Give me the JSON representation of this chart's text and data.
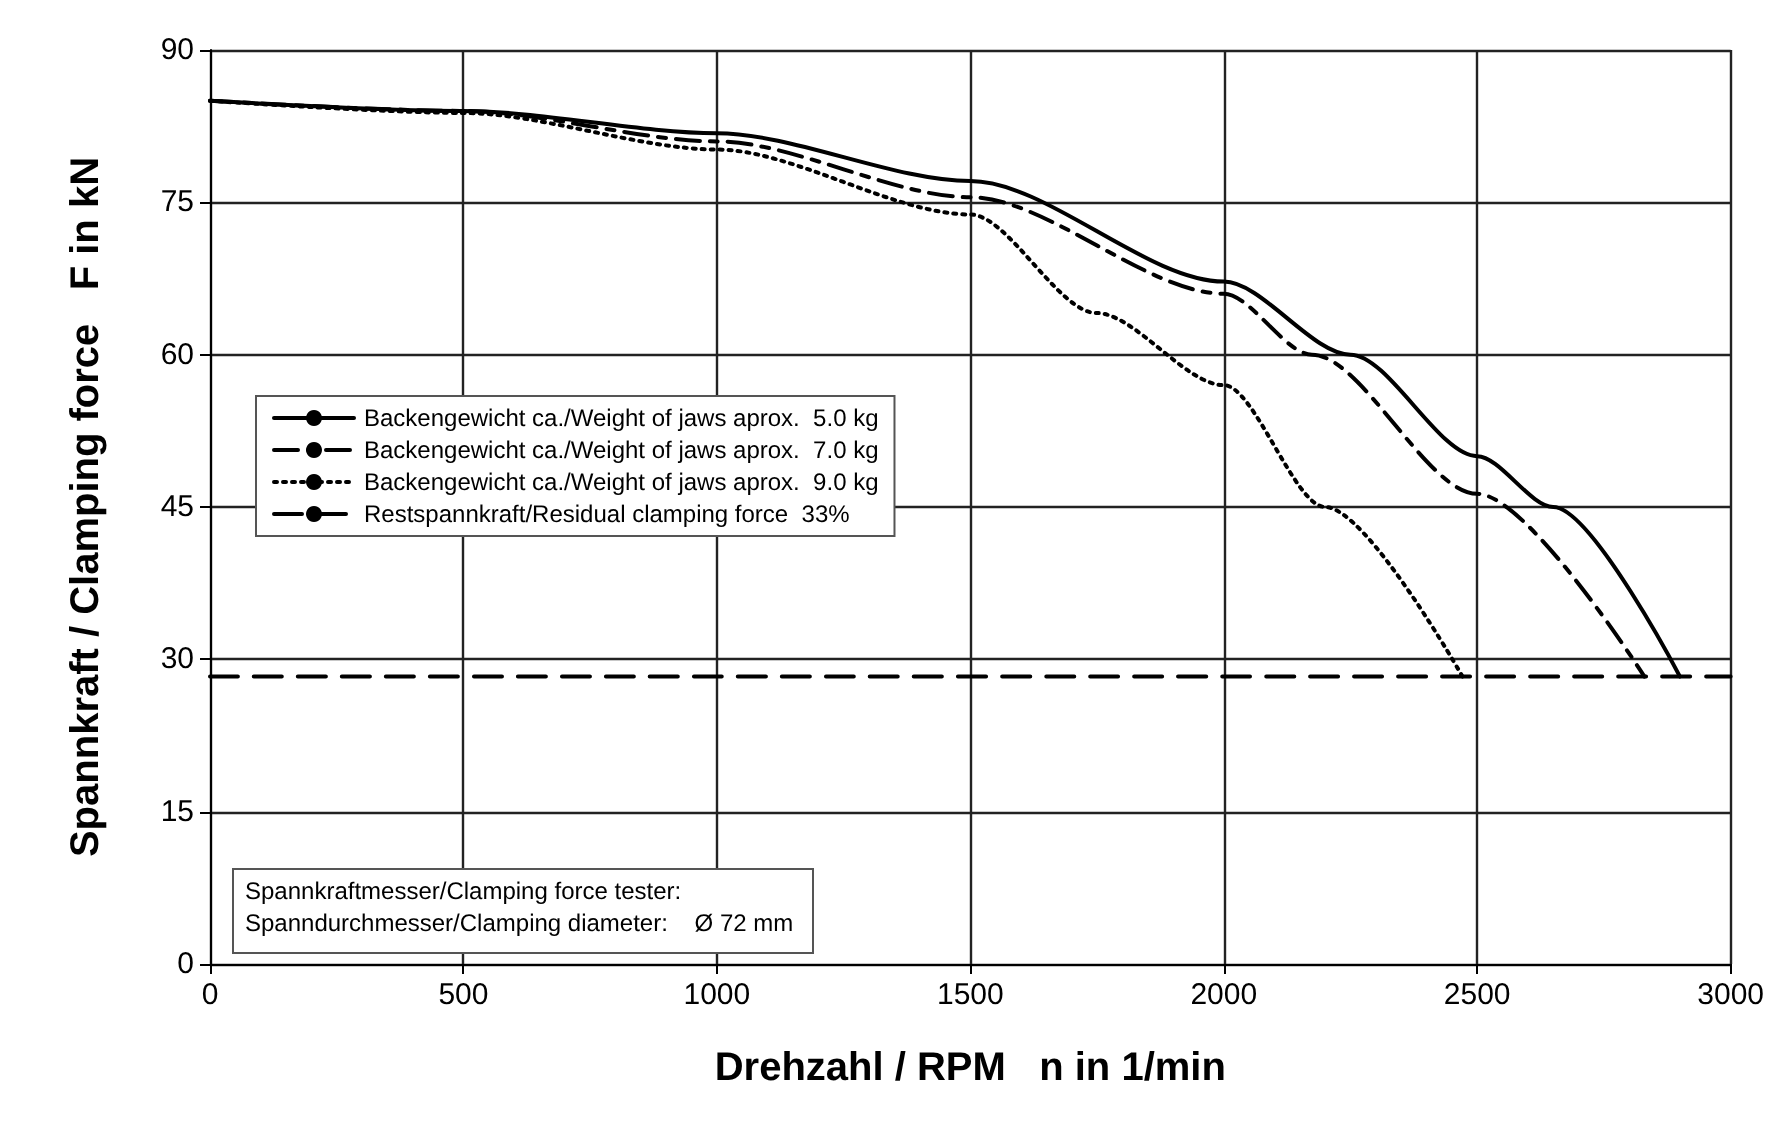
{
  "chart_data": {
    "type": "line",
    "xlabel": "Drehzahl / RPM   n in 1/min",
    "ylabel": "Spannkraft / Clamping force   F in kN",
    "xlim": [
      0,
      3000
    ],
    "xticks": [
      0,
      500,
      1000,
      1500,
      2000,
      2500,
      3000
    ],
    "ylim": [
      0,
      90
    ],
    "yticks": [
      0,
      15,
      30,
      45,
      60,
      75,
      90
    ],
    "grid": true,
    "legend": "left",
    "marker": "none",
    "series": [
      {
        "name": "Backengewicht ca./Weight of jaws aprox.  5.0 kg",
        "color": "#000000",
        "line_style": "solid",
        "x": [
          0,
          500,
          1000,
          1500,
          2000,
          2250,
          2500,
          2650,
          2900
        ],
        "values": [
          85,
          84,
          81.8,
          77.1,
          67.2,
          60,
          50,
          45,
          28.3
        ]
      },
      {
        "name": "Backengewicht ca./Weight of jaws aprox.  7.0 kg",
        "color": "#000000",
        "line_style": "dashdot",
        "x": [
          0,
          500,
          1000,
          1500,
          2000,
          2174,
          2500,
          2830
        ],
        "values": [
          85,
          84,
          81,
          75.5,
          66,
          60,
          46.3,
          28.3
        ]
      },
      {
        "name": "Backengewicht ca./Weight of jaws aprox.  9.0 kg",
        "color": "#000000",
        "line_style": "dotted",
        "x": [
          0,
          500,
          1000,
          1500,
          1749,
          2000,
          2200,
          2471
        ],
        "values": [
          85,
          83.8,
          80.2,
          73.8,
          64.1,
          57,
          45,
          28.3
        ]
      },
      {
        "name": "Restspannkraft/Residual clamping force  33%",
        "color": "#000000",
        "line_style": "dashed",
        "x": [
          0,
          3000
        ],
        "values": [
          28.3,
          28.3
        ]
      }
    ],
    "annotations": [
      "Spannkraftmesser/Clamping force tester:",
      "Spanndurchmesser/Clamping diameter:    Ø 72 mm"
    ]
  }
}
